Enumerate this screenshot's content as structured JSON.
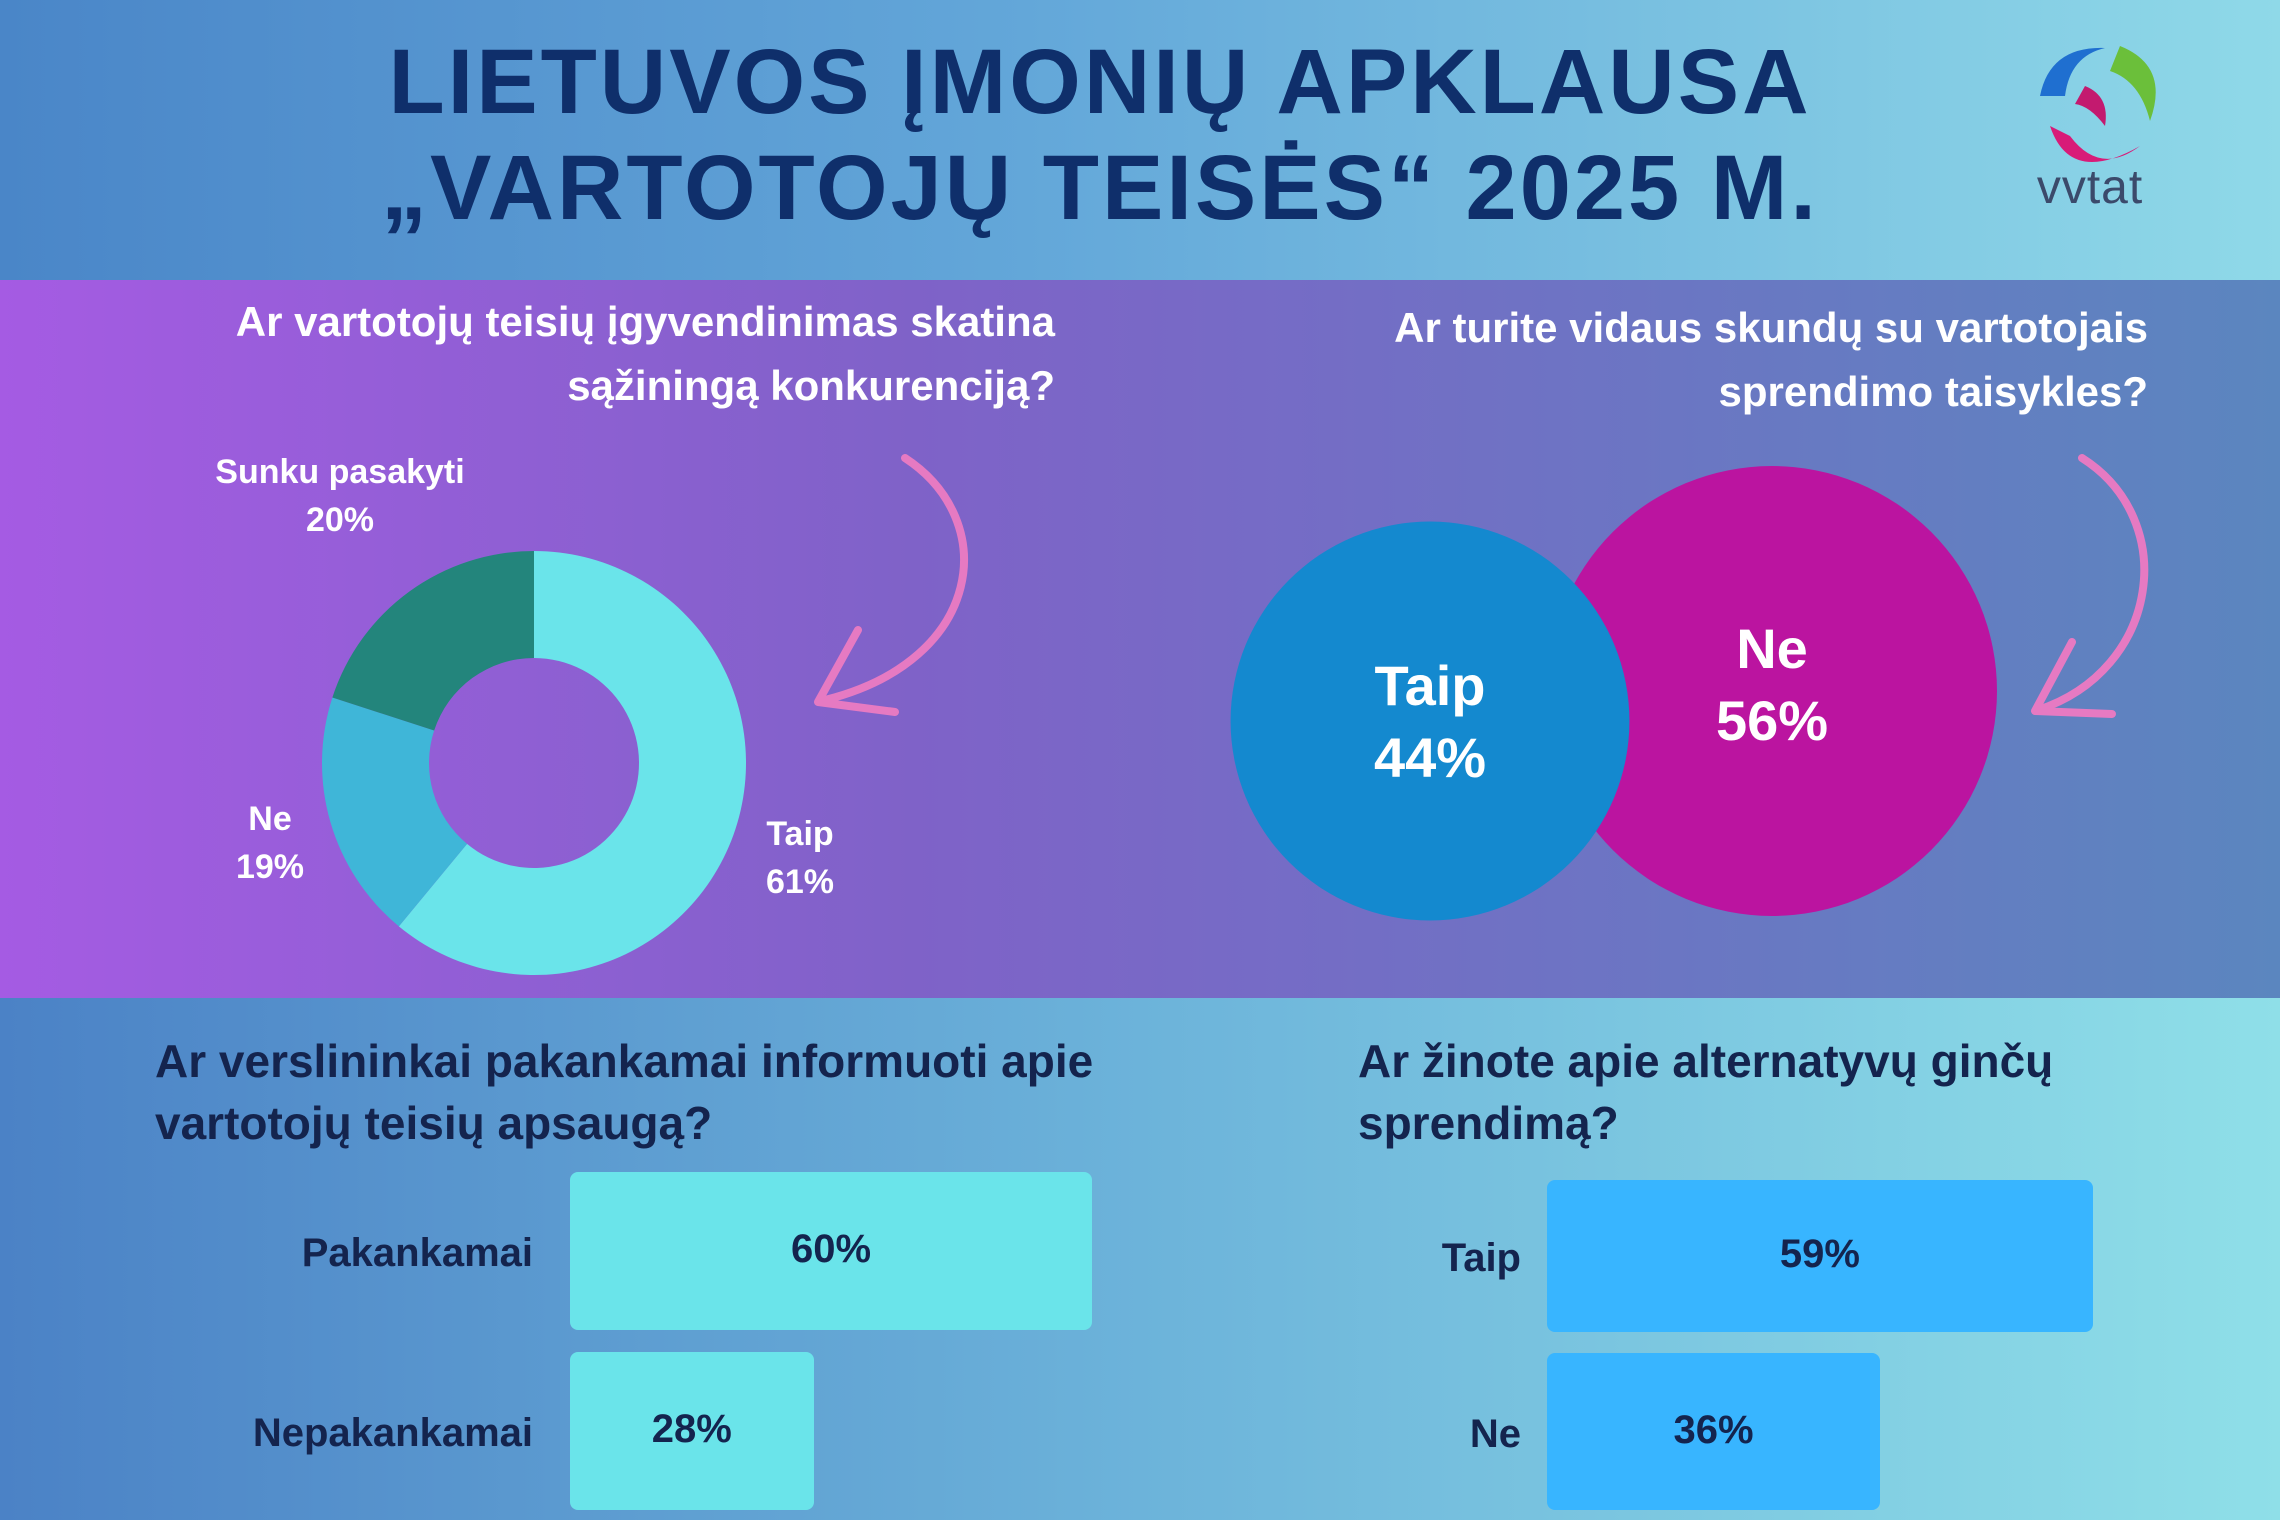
{
  "header": {
    "title_line1": "LIETUVOS ĮMONIŲ APKLAUSA",
    "title_line2": "„VARTOTOJŲ TEISĖS“ 2025 M.",
    "logo_text": "vvtat"
  },
  "colors": {
    "title": "#0f2f6b",
    "donut_taip": "#6ae4ea",
    "donut_ne": "#3fb6d8",
    "donut_sunku": "#23857c",
    "circle_taip": "#1489cf",
    "circle_ne": "#bb14a0",
    "bar_informed": "#6ae4ea",
    "bar_adr": "#38b5ff",
    "arrow": "#e67ac2"
  },
  "chart_data": [
    {
      "type": "pie",
      "title": "Ar vartotojų teisių įgyvendinimas skatina sąžiningą konkurenciją?",
      "categories": [
        "Taip",
        "Ne",
        "Sunku pasakyti"
      ],
      "values": [
        61,
        19,
        20
      ],
      "labels": [
        "Taip\n61%",
        "Ne\n19%",
        "Sunku pasakyti\n20%"
      ]
    },
    {
      "type": "pie",
      "title": "Ar turite vidaus skundų su vartotojais sprendimo taisykles?",
      "categories": [
        "Taip",
        "Ne"
      ],
      "values": [
        44,
        56
      ],
      "labels": [
        "Taip\n44%",
        "Ne\n56%"
      ]
    },
    {
      "type": "bar",
      "title": "Ar verslininkai pakankamai informuoti apie vartotojų teisių apsaugą?",
      "categories": [
        "Pakankamai",
        "Nepakankamai"
      ],
      "values": [
        60,
        28
      ],
      "labels": [
        "60%",
        "28%"
      ]
    },
    {
      "type": "bar",
      "title": "Ar žinote apie alternatyvų ginčų sprendimą?",
      "categories": [
        "Taip",
        "Ne"
      ],
      "values": [
        59,
        36
      ],
      "labels": [
        "59%",
        "36%"
      ]
    }
  ]
}
